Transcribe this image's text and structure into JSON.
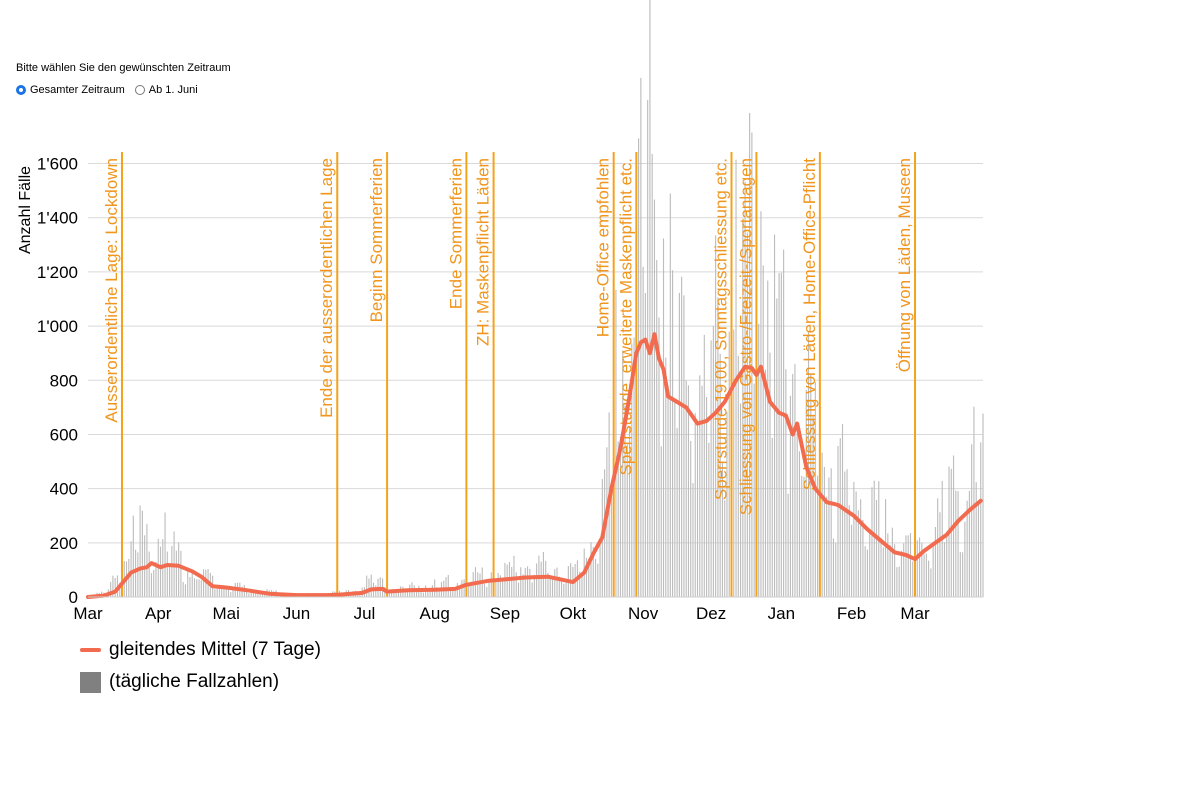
{
  "selector": {
    "prompt": "Bitte wählen Sie den gewünschten Zeitraum",
    "options": [
      {
        "label": "Gesamter Zeitraum",
        "selected": true
      },
      {
        "label": "Ab 1. Juni",
        "selected": false
      }
    ]
  },
  "legend": {
    "line_label": "gleitendes Mittel (7 Tage)",
    "bar_label": "(tägliche Fallzahlen)"
  },
  "colors": {
    "line": "#f26b4e",
    "bars": "#bdbdbd",
    "legend_bar": "#808080",
    "events": "#f5a21b",
    "event_text": "#f0961e",
    "grid": "#d9d9d9",
    "radio_selected": "#1a73e8"
  },
  "chart_data": {
    "type": "bar",
    "ylabel": "Anzahl Fälle",
    "ylim": [
      0,
      1650
    ],
    "yticks": [
      0,
      200,
      400,
      600,
      800,
      1000,
      1200,
      1400,
      1600
    ],
    "ytick_labels": [
      "0",
      "200",
      "400",
      "600",
      "800",
      "1'000",
      "1'200",
      "1'400",
      "1'600"
    ],
    "grid": true,
    "legend_position": "bottom-left",
    "x_start": "2020-03-01",
    "x_end": "2021-03-31",
    "month_ticks": [
      {
        "date": "2020-03-01",
        "label": "Mar"
      },
      {
        "date": "2020-04-01",
        "label": "Apr"
      },
      {
        "date": "2020-05-01",
        "label": "Mai"
      },
      {
        "date": "2020-06-01",
        "label": "Jun"
      },
      {
        "date": "2020-07-01",
        "label": "Jul"
      },
      {
        "date": "2020-08-01",
        "label": "Aug"
      },
      {
        "date": "2020-09-01",
        "label": "Sep"
      },
      {
        "date": "2020-10-01",
        "label": "Okt"
      },
      {
        "date": "2020-11-01",
        "label": "Nov"
      },
      {
        "date": "2020-12-01",
        "label": "Dez"
      },
      {
        "date": "2021-01-01",
        "label": "Jan"
      },
      {
        "date": "2021-02-01",
        "label": "Feb"
      },
      {
        "date": "2021-03-01",
        "label": "Mar"
      }
    ],
    "events": [
      {
        "date": "2020-03-16",
        "label": "Ausserordentliche Lage: Lockdown"
      },
      {
        "date": "2020-06-19",
        "label": "Ende der ausserordentlichen Lage"
      },
      {
        "date": "2020-07-11",
        "label": "Beginn Sommerferien"
      },
      {
        "date": "2020-08-15",
        "label": "Ende Sommerferien"
      },
      {
        "date": "2020-08-27",
        "label": "ZH: Maskenpflicht Läden"
      },
      {
        "date": "2020-10-19",
        "label": "Home-Office empfohlen"
      },
      {
        "date": "2020-10-29",
        "label": "Sperrstunde, erweiterte Maskenpflicht etc."
      },
      {
        "date": "2020-12-10",
        "label": "Sperrstunde 19.00, Sonntagsschliessung etc."
      },
      {
        "date": "2020-12-21",
        "label": "Schliessung von Gastro-/Freizeit-/Sportanlagen"
      },
      {
        "date": "2021-01-18",
        "label": "Schliessung von Läden, Home-Office-Pflicht"
      },
      {
        "date": "2021-03-01",
        "label": "Öffnung von Läden, Museen"
      }
    ],
    "series": [
      {
        "name": "gleitendes Mittel (7 Tage)",
        "type": "line",
        "points": [
          [
            "2020-03-01",
            0
          ],
          [
            "2020-03-08",
            5
          ],
          [
            "2020-03-13",
            20
          ],
          [
            "2020-03-16",
            50
          ],
          [
            "2020-03-20",
            90
          ],
          [
            "2020-03-24",
            105
          ],
          [
            "2020-03-27",
            110
          ],
          [
            "2020-03-29",
            125
          ],
          [
            "2020-04-02",
            110
          ],
          [
            "2020-04-05",
            118
          ],
          [
            "2020-04-10",
            115
          ],
          [
            "2020-04-16",
            95
          ],
          [
            "2020-04-20",
            75
          ],
          [
            "2020-04-25",
            40
          ],
          [
            "2020-05-01",
            35
          ],
          [
            "2020-05-10",
            25
          ],
          [
            "2020-05-20",
            12
          ],
          [
            "2020-06-01",
            7
          ],
          [
            "2020-06-15",
            7
          ],
          [
            "2020-06-20",
            9
          ],
          [
            "2020-06-30",
            15
          ],
          [
            "2020-07-04",
            28
          ],
          [
            "2020-07-09",
            30
          ],
          [
            "2020-07-11",
            20
          ],
          [
            "2020-07-20",
            25
          ],
          [
            "2020-08-01",
            27
          ],
          [
            "2020-08-10",
            30
          ],
          [
            "2020-08-15",
            45
          ],
          [
            "2020-08-25",
            60
          ],
          [
            "2020-09-01",
            65
          ],
          [
            "2020-09-10",
            72
          ],
          [
            "2020-09-20",
            75
          ],
          [
            "2020-10-01",
            55
          ],
          [
            "2020-10-06",
            90
          ],
          [
            "2020-10-10",
            160
          ],
          [
            "2020-10-14",
            220
          ],
          [
            "2020-10-18",
            400
          ],
          [
            "2020-10-22",
            550
          ],
          [
            "2020-10-26",
            740
          ],
          [
            "2020-10-29",
            900
          ],
          [
            "2020-10-31",
            940
          ],
          [
            "2020-11-02",
            950
          ],
          [
            "2020-11-04",
            900
          ],
          [
            "2020-11-06",
            970
          ],
          [
            "2020-11-08",
            880
          ],
          [
            "2020-11-10",
            840
          ],
          [
            "2020-11-12",
            740
          ],
          [
            "2020-11-16",
            720
          ],
          [
            "2020-11-20",
            700
          ],
          [
            "2020-11-25",
            640
          ],
          [
            "2020-11-29",
            650
          ],
          [
            "2020-12-03",
            680
          ],
          [
            "2020-12-07",
            720
          ],
          [
            "2020-12-12",
            800
          ],
          [
            "2020-12-16",
            850
          ],
          [
            "2020-12-19",
            845
          ],
          [
            "2020-12-21",
            820
          ],
          [
            "2020-12-23",
            850
          ],
          [
            "2020-12-27",
            720
          ],
          [
            "2020-12-31",
            680
          ],
          [
            "2021-01-03",
            670
          ],
          [
            "2021-01-06",
            600
          ],
          [
            "2021-01-08",
            640
          ],
          [
            "2021-01-12",
            480
          ],
          [
            "2021-01-16",
            400
          ],
          [
            "2021-01-21",
            350
          ],
          [
            "2021-01-26",
            340
          ],
          [
            "2021-02-02",
            300
          ],
          [
            "2021-02-08",
            250
          ],
          [
            "2021-02-15",
            200
          ],
          [
            "2021-02-20",
            165
          ],
          [
            "2021-02-25",
            155
          ],
          [
            "2021-03-01",
            140
          ],
          [
            "2021-03-05",
            170
          ],
          [
            "2021-03-10",
            200
          ],
          [
            "2021-03-15",
            230
          ],
          [
            "2021-03-20",
            280
          ],
          [
            "2021-03-25",
            320
          ],
          [
            "2021-03-30",
            355
          ]
        ]
      },
      {
        "name": "(tägliche Fallzahlen)",
        "type": "bar",
        "note_daily_from_anchors": true,
        "anchors": [
          [
            "2020-03-01",
            2
          ],
          [
            "2020-03-10",
            20
          ],
          [
            "2020-03-18",
            120
          ],
          [
            "2020-03-23",
            210
          ],
          [
            "2020-03-28",
            140
          ],
          [
            "2020-04-03",
            190
          ],
          [
            "2020-04-10",
            120
          ],
          [
            "2020-04-20",
            70
          ],
          [
            "2020-05-01",
            40
          ],
          [
            "2020-05-15",
            20
          ],
          [
            "2020-06-01",
            8
          ],
          [
            "2020-06-25",
            15
          ],
          [
            "2020-07-05",
            60
          ],
          [
            "2020-07-15",
            25
          ],
          [
            "2020-08-01",
            40
          ],
          [
            "2020-08-20",
            65
          ],
          [
            "2020-09-01",
            85
          ],
          [
            "2020-09-20",
            100
          ],
          [
            "2020-10-01",
            70
          ],
          [
            "2020-10-08",
            150
          ],
          [
            "2020-10-15",
            300
          ],
          [
            "2020-10-20",
            650
          ],
          [
            "2020-10-25",
            900
          ],
          [
            "2020-10-30",
            1050
          ],
          [
            "2020-11-03",
            1450
          ],
          [
            "2020-11-06",
            1640
          ],
          [
            "2020-11-12",
            900
          ],
          [
            "2020-11-20",
            800
          ],
          [
            "2020-11-28",
            700
          ],
          [
            "2020-12-05",
            820
          ],
          [
            "2020-12-12",
            950
          ],
          [
            "2020-12-18",
            1100
          ],
          [
            "2020-12-22",
            1210
          ],
          [
            "2020-12-28",
            800
          ],
          [
            "2021-01-05",
            850
          ],
          [
            "2021-01-12",
            600
          ],
          [
            "2021-01-20",
            420
          ],
          [
            "2021-02-01",
            350
          ],
          [
            "2021-02-10",
            270
          ],
          [
            "2021-02-20",
            200
          ],
          [
            "2021-03-01",
            160
          ],
          [
            "2021-03-10",
            220
          ],
          [
            "2021-03-20",
            330
          ],
          [
            "2021-03-26",
            400
          ],
          [
            "2021-03-31",
            420
          ]
        ]
      }
    ]
  }
}
